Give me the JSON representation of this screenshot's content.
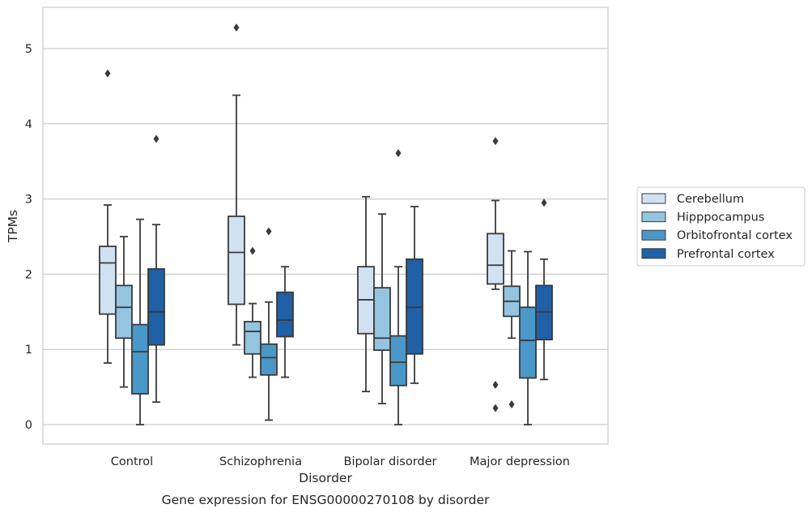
{
  "caption": "Gene expression for ENSG00000270108 by disorder",
  "chart_data": {
    "type": "box",
    "title": "",
    "xlabel": "Disorder",
    "ylabel": "TPMs",
    "ylim": [
      -0.25,
      5.55
    ],
    "yticks": [
      0,
      1,
      2,
      3,
      4,
      5
    ],
    "grid": "horizontal",
    "legend_position": "right",
    "categories": [
      "Control",
      "Schizophrenia",
      "Bipolar disorder",
      "Major depression"
    ],
    "series": [
      {
        "name": "Cerebellum",
        "color": "#d0e1f2",
        "boxes": [
          {
            "whisker_low": 0.82,
            "q1": 1.47,
            "median": 2.15,
            "q3": 2.37,
            "whisker_high": 2.92,
            "outliers": [
              4.67
            ]
          },
          {
            "whisker_low": 1.06,
            "q1": 1.6,
            "median": 2.29,
            "q3": 2.77,
            "whisker_high": 4.38,
            "outliers": [
              5.28
            ]
          },
          {
            "whisker_low": 0.44,
            "q1": 1.21,
            "median": 1.66,
            "q3": 2.1,
            "whisker_high": 3.03,
            "outliers": []
          },
          {
            "whisker_low": 1.8,
            "q1": 1.87,
            "median": 2.12,
            "q3": 2.54,
            "whisker_high": 2.98,
            "outliers": [
              3.77,
              0.53,
              0.22
            ]
          }
        ]
      },
      {
        "name": "Hipppocampus",
        "color": "#94c4df",
        "boxes": [
          {
            "whisker_low": 0.5,
            "q1": 1.15,
            "median": 1.56,
            "q3": 1.85,
            "whisker_high": 2.5,
            "outliers": []
          },
          {
            "whisker_low": 0.63,
            "q1": 0.94,
            "median": 1.24,
            "q3": 1.37,
            "whisker_high": 1.61,
            "outliers": [
              2.31
            ]
          },
          {
            "whisker_low": 0.28,
            "q1": 0.99,
            "median": 1.15,
            "q3": 1.82,
            "whisker_high": 2.8,
            "outliers": []
          },
          {
            "whisker_low": 1.15,
            "q1": 1.44,
            "median": 1.64,
            "q3": 1.84,
            "whisker_high": 2.31,
            "outliers": [
              0.27
            ]
          }
        ]
      },
      {
        "name": "Orbitofrontal cortex",
        "color": "#4a98c9",
        "boxes": [
          {
            "whisker_low": 0.0,
            "q1": 0.41,
            "median": 0.97,
            "q3": 1.33,
            "whisker_high": 2.73,
            "outliers": []
          },
          {
            "whisker_low": 0.06,
            "q1": 0.66,
            "median": 0.89,
            "q3": 1.07,
            "whisker_high": 1.63,
            "outliers": [
              2.57
            ]
          },
          {
            "whisker_low": 0.0,
            "q1": 0.52,
            "median": 0.83,
            "q3": 1.18,
            "whisker_high": 2.1,
            "outliers": [
              3.61
            ]
          },
          {
            "whisker_low": 0.0,
            "q1": 0.62,
            "median": 1.12,
            "q3": 1.56,
            "whisker_high": 2.3,
            "outliers": []
          }
        ]
      },
      {
        "name": "Prefrontal cortex",
        "color": "#2060a6",
        "boxes": [
          {
            "whisker_low": 0.3,
            "q1": 1.06,
            "median": 1.5,
            "q3": 2.07,
            "whisker_high": 2.66,
            "outliers": [
              3.8
            ]
          },
          {
            "whisker_low": 0.63,
            "q1": 1.17,
            "median": 1.39,
            "q3": 1.76,
            "whisker_high": 2.1,
            "outliers": []
          },
          {
            "whisker_low": 0.55,
            "q1": 0.94,
            "median": 1.56,
            "q3": 2.2,
            "whisker_high": 2.9,
            "outliers": []
          },
          {
            "whisker_low": 0.6,
            "q1": 1.13,
            "median": 1.5,
            "q3": 1.85,
            "whisker_high": 2.2,
            "outliers": [
              2.95
            ]
          }
        ]
      }
    ]
  }
}
